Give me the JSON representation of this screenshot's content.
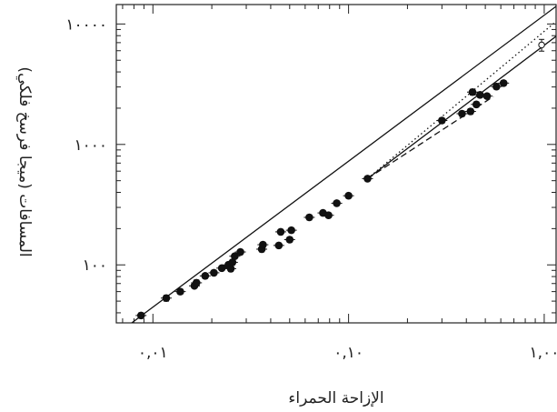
{
  "chart_data": {
    "type": "scatter",
    "title": "",
    "xlabel": "الإزاحة الحمراء",
    "ylabel": "المسافات (ميجا فرسخ فلكي)",
    "x_scale": "log",
    "y_scale": "log",
    "xlim": [
      0.0065,
      1.15
    ],
    "ylim": [
      33,
      14500
    ],
    "grid": false,
    "x_ticks": [
      {
        "value": 0.01,
        "label": "٠,٠١"
      },
      {
        "value": 0.1,
        "label": "٠,١٠"
      },
      {
        "value": 1.0,
        "label": "١,٠٠"
      }
    ],
    "y_ticks": [
      {
        "value": 100,
        "label": "١٠٠"
      },
      {
        "value": 1000,
        "label": "١٠٠٠"
      },
      {
        "value": 10000,
        "label": "١٠٠٠٠"
      }
    ],
    "series": [
      {
        "marker": "filled-circle",
        "points": [
          {
            "x": 0.0087,
            "y": 38,
            "err": 2
          },
          {
            "x": 0.0117,
            "y": 53,
            "err": 3
          },
          {
            "x": 0.0138,
            "y": 60,
            "err": 3
          },
          {
            "x": 0.0163,
            "y": 67,
            "err": 3
          },
          {
            "x": 0.0167,
            "y": 71,
            "err": 4
          },
          {
            "x": 0.0185,
            "y": 81,
            "err": 4
          },
          {
            "x": 0.0205,
            "y": 86,
            "err": 4
          },
          {
            "x": 0.0225,
            "y": 94,
            "err": 4
          },
          {
            "x": 0.0243,
            "y": 100,
            "err": 5
          },
          {
            "x": 0.025,
            "y": 93,
            "err": 5
          },
          {
            "x": 0.0255,
            "y": 105,
            "err": 5
          },
          {
            "x": 0.0262,
            "y": 118,
            "err": 5
          },
          {
            "x": 0.028,
            "y": 128,
            "err": 6
          },
          {
            "x": 0.036,
            "y": 135,
            "err": 7
          },
          {
            "x": 0.0365,
            "y": 147,
            "err": 7
          },
          {
            "x": 0.044,
            "y": 145,
            "err": 7
          },
          {
            "x": 0.045,
            "y": 188,
            "err": 9
          },
          {
            "x": 0.05,
            "y": 162,
            "err": 8
          },
          {
            "x": 0.051,
            "y": 194,
            "err": 9
          },
          {
            "x": 0.063,
            "y": 248,
            "err": 12
          },
          {
            "x": 0.074,
            "y": 270,
            "err": 13
          },
          {
            "x": 0.079,
            "y": 258,
            "err": 12
          },
          {
            "x": 0.087,
            "y": 325,
            "err": 15
          },
          {
            "x": 0.1,
            "y": 375,
            "err": 17
          },
          {
            "x": 0.125,
            "y": 520,
            "err": 24
          },
          {
            "x": 0.3,
            "y": 1580,
            "err": 80
          },
          {
            "x": 0.38,
            "y": 1800,
            "err": 90
          },
          {
            "x": 0.42,
            "y": 1880,
            "err": 100
          },
          {
            "x": 0.43,
            "y": 2720,
            "err": 150
          },
          {
            "x": 0.45,
            "y": 2150,
            "err": 110
          },
          {
            "x": 0.47,
            "y": 2580,
            "err": 130
          },
          {
            "x": 0.51,
            "y": 2520,
            "err": 120
          },
          {
            "x": 0.57,
            "y": 3020,
            "err": 150
          },
          {
            "x": 0.62,
            "y": 3230,
            "err": 160
          }
        ]
      },
      {
        "marker": "open-circle",
        "points": [
          {
            "x": 0.97,
            "y": 6700,
            "err": 750
          }
        ]
      }
    ],
    "lines": [
      {
        "style": "solid",
        "points": [
          [
            0.0078,
            33
          ],
          [
            1.15,
            14000
          ]
        ]
      },
      {
        "style": "solid",
        "points": [
          [
            0.125,
            520
          ],
          [
            1.15,
            7900
          ]
        ]
      },
      {
        "style": "dashed",
        "points": [
          [
            0.125,
            520
          ],
          [
            0.55,
            2500
          ]
        ]
      },
      {
        "style": "dotted",
        "points": [
          [
            0.125,
            520
          ],
          [
            1.15,
            10500
          ]
        ]
      }
    ]
  }
}
